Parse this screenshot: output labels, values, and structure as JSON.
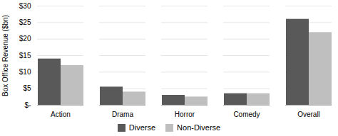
{
  "chart_data": {
    "type": "bar",
    "categories": [
      "Action",
      "Drama",
      "Horror",
      "Comedy",
      "Overall"
    ],
    "series": [
      {
        "name": "Diverse",
        "color": "#595959",
        "values": [
          14.0,
          5.5,
          3.0,
          3.5,
          26.0
        ]
      },
      {
        "name": "Non-Diverse",
        "color": "#bfbfbf",
        "values": [
          12.0,
          4.0,
          2.5,
          3.5,
          22.0
        ]
      }
    ],
    "ylabel": "Box Office Revenue ($bn)",
    "ylim": [
      0,
      30
    ],
    "yticks": [
      {
        "value": 0,
        "label": "$-"
      },
      {
        "value": 5,
        "label": "$5"
      },
      {
        "value": 10,
        "label": "$10"
      },
      {
        "value": 15,
        "label": "$15"
      },
      {
        "value": 20,
        "label": "$20"
      },
      {
        "value": 25,
        "label": "$25"
      },
      {
        "value": 30,
        "label": "$30"
      }
    ],
    "grid": true,
    "legend": "bottom"
  }
}
